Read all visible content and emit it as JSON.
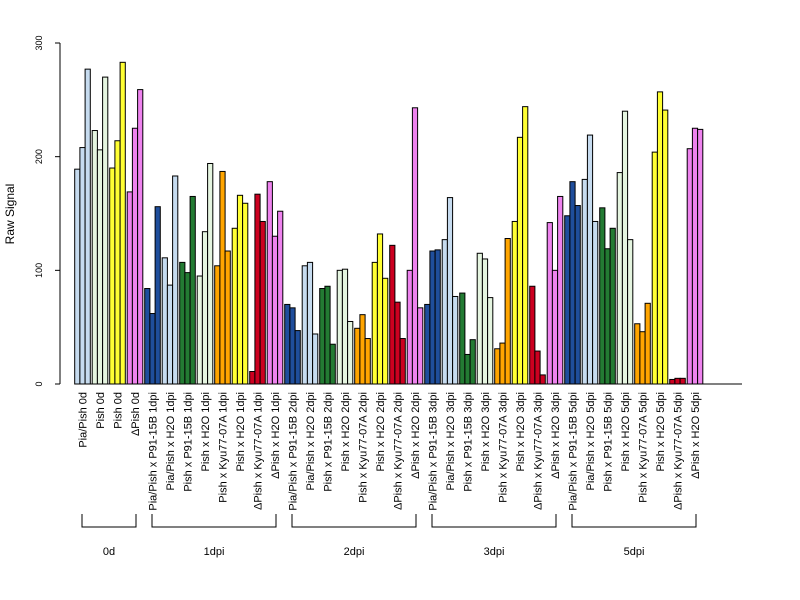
{
  "chart_data": {
    "type": "bar",
    "xlabel": "",
    "ylabel": "Raw Signal",
    "ylim": [
      0,
      300
    ],
    "yticks": [
      0,
      100,
      200,
      300
    ],
    "groups": [
      {
        "label": "0d",
        "categories": [
          {
            "label": "Pia/Pish 0d",
            "color_key": "pia_pish",
            "values": [
              189,
              208,
              277
            ]
          },
          {
            "label": "Pish 0d",
            "color_key": "pish_h2o",
            "values": [
              223,
              206,
              270
            ]
          },
          {
            "label": "Pish 0d",
            "color_key": "yellow",
            "values": [
              190,
              214,
              283
            ]
          },
          {
            "label": "ΔPish 0d",
            "color_key": "violet",
            "values": [
              169,
              225,
              259
            ]
          }
        ]
      },
      {
        "label": "1dpi",
        "categories": [
          {
            "label": "Pia/Pish x P91-15B 1dpi",
            "color_key": "blue",
            "values": [
              84,
              62,
              156
            ]
          },
          {
            "label": "Pia/Pish x H2O 1dpi",
            "color_key": "pia_pish",
            "values": [
              111,
              87,
              183
            ]
          },
          {
            "label": "Pish x P91-15B 1dpi",
            "color_key": "green",
            "values": [
              107,
              98,
              165
            ]
          },
          {
            "label": "Pish x H2O 1dpi",
            "color_key": "pish_h2o",
            "values": [
              95,
              134,
              194
            ]
          },
          {
            "label": "Pish x Kyu77-07A 1dpi",
            "color_key": "orange",
            "values": [
              104,
              187,
              117
            ]
          },
          {
            "label": "Pish x H2O 1dpi",
            "color_key": "yellow",
            "values": [
              137,
              166,
              159
            ]
          },
          {
            "label": "ΔPish x Kyu77-07A 1dpi",
            "color_key": "red",
            "values": [
              11,
              167,
              143
            ]
          },
          {
            "label": "ΔPish x H2O 1dpi",
            "color_key": "violet",
            "values": [
              178,
              130,
              152
            ]
          }
        ]
      },
      {
        "label": "2dpi",
        "categories": [
          {
            "label": "Pia/Pish x P91-15B 2dpi",
            "color_key": "blue",
            "values": [
              70,
              67,
              47
            ]
          },
          {
            "label": "Pia/Pish x H2O 2dpi",
            "color_key": "pia_pish",
            "values": [
              104,
              107,
              44
            ]
          },
          {
            "label": "Pish x P91-15B 2dpi",
            "color_key": "green",
            "values": [
              84,
              86,
              35
            ]
          },
          {
            "label": "Pish x H2O 2dpi",
            "color_key": "pish_h2o",
            "values": [
              100,
              101,
              55
            ]
          },
          {
            "label": "Pish x Kyu77-07A 2dpi",
            "color_key": "orange",
            "values": [
              49,
              61,
              40
            ]
          },
          {
            "label": "Pish x H2O 2dpi",
            "color_key": "yellow",
            "values": [
              107,
              132,
              93
            ]
          },
          {
            "label": "ΔPish x Kyu77-07A 2dpi",
            "color_key": "red",
            "values": [
              122,
              72,
              40
            ]
          },
          {
            "label": "ΔPish x H2O 2dpi",
            "color_key": "violet",
            "values": [
              100,
              243,
              67
            ]
          }
        ]
      },
      {
        "label": "3dpi",
        "categories": [
          {
            "label": "Pia/Pish x P91-15B 3dpi",
            "color_key": "blue",
            "values": [
              70,
              117,
              118
            ]
          },
          {
            "label": "Pia/Pish x H2O 3dpi",
            "color_key": "pia_pish",
            "values": [
              127,
              164,
              77
            ]
          },
          {
            "label": "Pish x P91-15B 3dpi",
            "color_key": "green",
            "values": [
              80,
              26,
              39
            ]
          },
          {
            "label": "Pish x H2O 3dpi",
            "color_key": "pish_h2o",
            "values": [
              115,
              110,
              76
            ]
          },
          {
            "label": "Pish x Kyu77-07A 3dpi",
            "color_key": "orange",
            "values": [
              31,
              36,
              128
            ]
          },
          {
            "label": "Pish x H2O 3dpi",
            "color_key": "yellow",
            "values": [
              143,
              217,
              244
            ]
          },
          {
            "label": "ΔPish x Kyu77-07A 3dpi",
            "color_key": "red",
            "values": [
              86,
              29,
              8
            ]
          },
          {
            "label": "ΔPish x H2O 3dpi",
            "color_key": "violet",
            "values": [
              142,
              100,
              165
            ]
          }
        ]
      },
      {
        "label": "5dpi",
        "categories": [
          {
            "label": "Pia/Pish x P91-15B 5dpi",
            "color_key": "blue",
            "values": [
              148,
              178,
              157
            ]
          },
          {
            "label": "Pia/Pish x H2O 5dpi",
            "color_key": "pia_pish",
            "values": [
              180,
              219,
              143
            ]
          },
          {
            "label": "Pish x P91-15B 5dpi",
            "color_key": "green",
            "values": [
              155,
              119,
              137
            ]
          },
          {
            "label": "Pish x H2O 5dpi",
            "color_key": "pish_h2o",
            "values": [
              186,
              240,
              127
            ]
          },
          {
            "label": "Pish x Kyu77-07A 5dpi",
            "color_key": "orange",
            "values": [
              53,
              46,
              71
            ]
          },
          {
            "label": "Pish x H2O 5dpi",
            "color_key": "yellow",
            "values": [
              204,
              257,
              241
            ]
          },
          {
            "label": "ΔPish x Kyu77-07A 5dpi",
            "color_key": "red",
            "values": [
              4,
              5,
              5
            ]
          },
          {
            "label": "ΔPish x H2O 5dpi",
            "color_key": "violet",
            "values": [
              207,
              225,
              224
            ]
          }
        ]
      }
    ]
  },
  "colors": {
    "pia_pish": "#c6dbef",
    "pish_h2o": "#e5f5e0",
    "yellow": "#ffff33",
    "violet": "#ee82ee",
    "blue": "#1f4e9c",
    "green": "#237b33",
    "orange": "#ffa500",
    "red": "#cc0020",
    "outline": "#000000",
    "axis": "#000000"
  }
}
